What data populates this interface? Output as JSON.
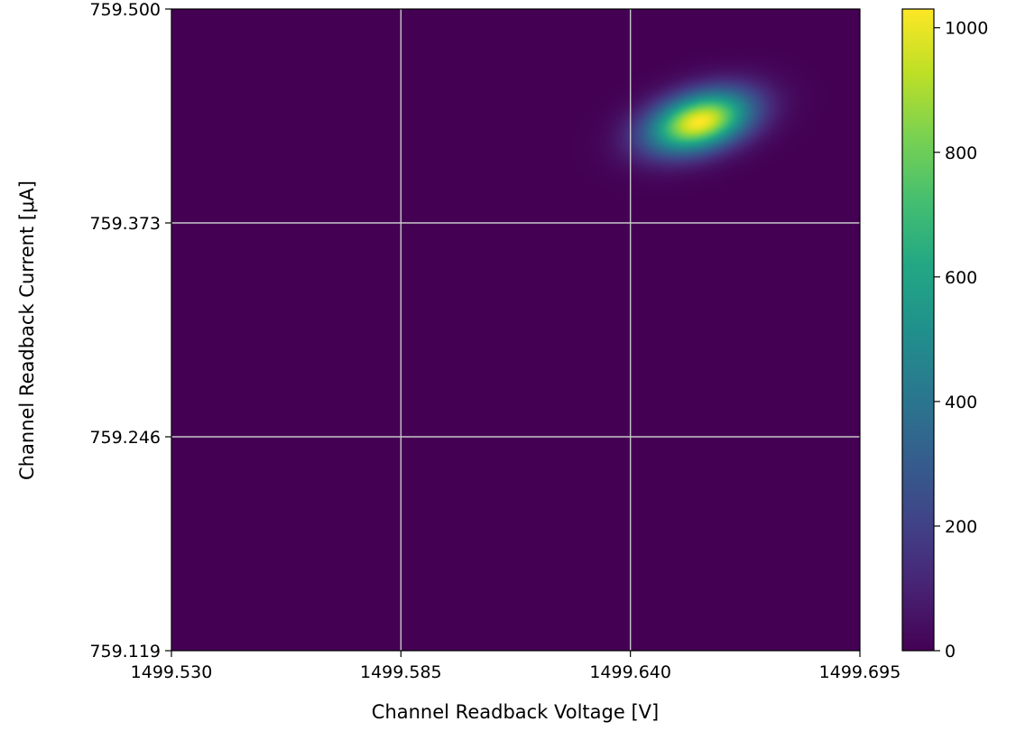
{
  "chart_data": {
    "type": "heatmap",
    "title": "",
    "xlabel": "Channel Readback Voltage [V]",
    "ylabel": "Channel Readback Current [μA]",
    "xlim": [
      1499.53,
      1499.695
    ],
    "ylim": [
      759.119,
      759.5
    ],
    "x_ticks": [
      "1499.530",
      "1499.585",
      "1499.640",
      "1499.695"
    ],
    "y_ticks": [
      "759.500",
      "759.373",
      "759.246",
      "759.119"
    ],
    "x_tick_values": [
      1499.53,
      1499.585,
      1499.64,
      1499.695
    ],
    "y_tick_values": [
      759.5,
      759.373,
      759.246,
      759.119
    ],
    "grid": true,
    "colormap": "viridis",
    "colorbar": {
      "min": 0,
      "max": 1030,
      "ticks": [
        0,
        200,
        400,
        600,
        800,
        1000
      ],
      "tick_labels": [
        "0",
        "200",
        "400",
        "600",
        "800",
        "1000"
      ]
    },
    "density_peak": {
      "x": 1499.6565,
      "y": 759.433,
      "value": 1030,
      "sigma_x": 0.0085,
      "sigma_y": 0.0125,
      "correlation": 0.35
    },
    "background_value": 0
  },
  "colors": {
    "viridis_low": "#440154",
    "viridis_mid": "#21918c",
    "viridis_high": "#fde725",
    "grid": "#c8c8c8"
  }
}
